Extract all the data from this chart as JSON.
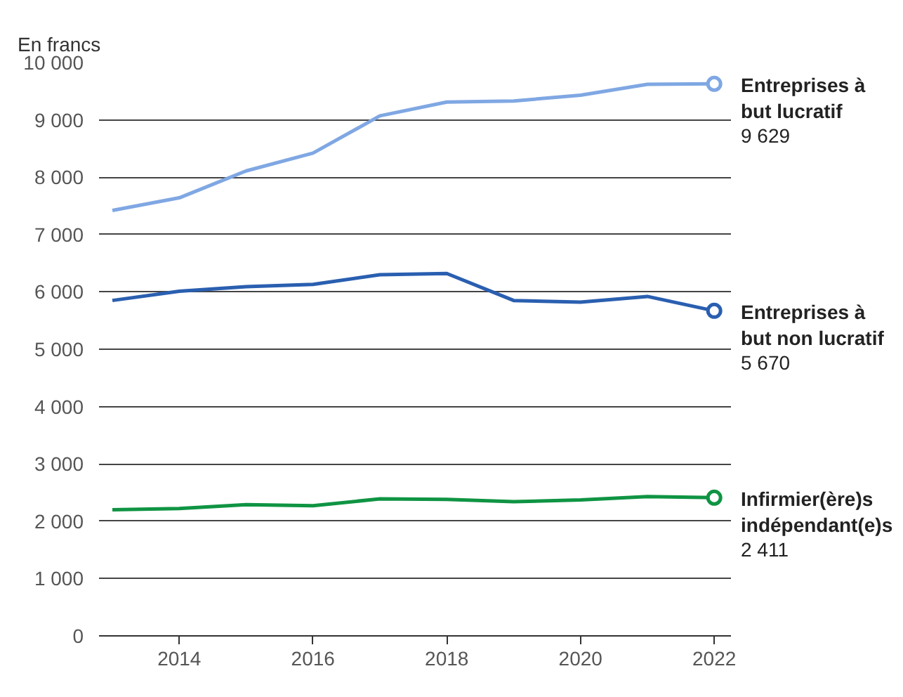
{
  "chart_data": {
    "type": "line",
    "ylabel": "En francs",
    "x": [
      2013,
      2014,
      2015,
      2016,
      2017,
      2018,
      2019,
      2020,
      2021,
      2022
    ],
    "series": [
      {
        "name": "Entreprises à\nbut lucratif",
        "color": "#7fa7e3",
        "values": [
          7420,
          7640,
          8110,
          8420,
          9070,
          9310,
          9330,
          9430,
          9620,
          9629
        ],
        "value_labels": [
          null,
          null,
          null,
          null,
          null,
          null,
          null,
          null,
          null,
          "9 629"
        ]
      },
      {
        "name": "Entreprises à\nbut non lucratif",
        "color": "#2a5fb0",
        "values": [
          5850,
          6010,
          6090,
          6130,
          6300,
          6320,
          5850,
          5820,
          5920,
          5670
        ],
        "value_labels": [
          null,
          null,
          null,
          null,
          null,
          null,
          null,
          null,
          null,
          "5 670"
        ]
      },
      {
        "name": "Infirmier(ère)s\nindépendant(e)s",
        "color": "#0f9443",
        "values": [
          2200,
          2220,
          2290,
          2270,
          2390,
          2380,
          2340,
          2370,
          2430,
          2411
        ],
        "value_labels": [
          null,
          null,
          null,
          null,
          null,
          null,
          null,
          null,
          null,
          "2 411"
        ]
      }
    ],
    "xlim": [
      2012.8,
      2022.25
    ],
    "xticks": [
      2014,
      2016,
      2018,
      2020,
      2022
    ],
    "ylim": [
      0,
      10000
    ],
    "yticks": [
      0,
      {
        "value": 1000,
        "label": "1 000"
      },
      {
        "value": 2000,
        "label": "2 000"
      },
      {
        "value": 3000,
        "label": "3 000"
      },
      {
        "value": 4000,
        "label": "4 000"
      },
      {
        "value": 5000,
        "label": "5 000"
      },
      {
        "value": 6000,
        "label": "6 000"
      },
      {
        "value": 7000,
        "label": "7 000"
      },
      {
        "value": 8000,
        "label": "8 000"
      },
      {
        "value": 9000,
        "label": "9 000"
      },
      {
        "value": 10000,
        "label": "10 000"
      }
    ],
    "grid": "y",
    "line_style": "solid"
  }
}
